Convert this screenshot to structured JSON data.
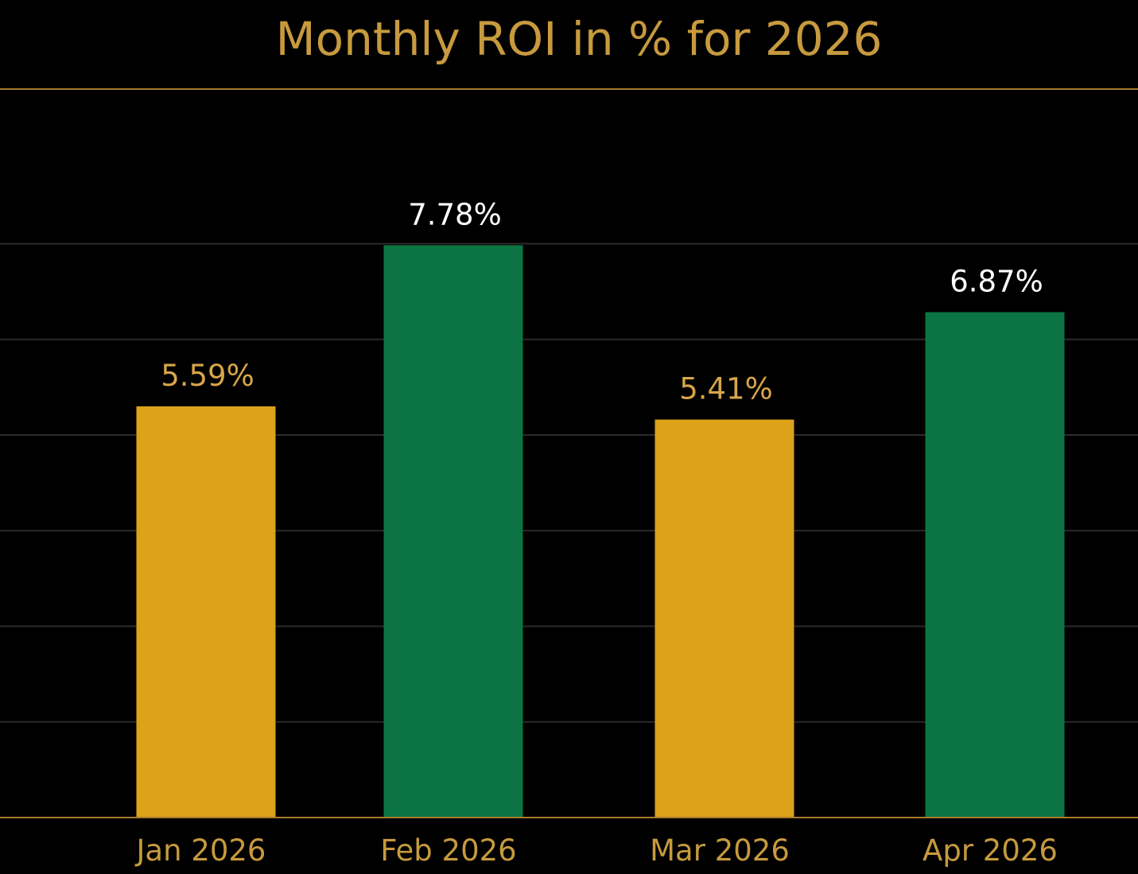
{
  "chart_data": {
    "type": "bar",
    "title": "Monthly ROI in % for 2026",
    "categories": [
      "Jan 2026",
      "Feb 2026",
      "Mar 2026",
      "Apr 2026"
    ],
    "values": [
      5.59,
      7.78,
      5.41,
      6.87
    ],
    "value_labels": [
      "5.59%",
      "7.78%",
      "5.41%",
      "6.87%"
    ],
    "bar_colors": [
      "#DBA21A",
      "#0C7442",
      "#DBA21A",
      "#0C7442"
    ],
    "value_label_colors": [
      "#D7A64A",
      "#FFFFFF",
      "#D7A64A",
      "#FFFFFF"
    ],
    "xlabel": "",
    "ylabel": "",
    "ylim": [
      0,
      9
    ],
    "grid": true,
    "legend": "none"
  },
  "colors": {
    "background": "#000000",
    "title": "#C79A3E",
    "tick_label": "#C79A3E",
    "title_rule": "#A77B2C",
    "baseline": "#A77B2C",
    "gridline": "#2A2A2A"
  }
}
